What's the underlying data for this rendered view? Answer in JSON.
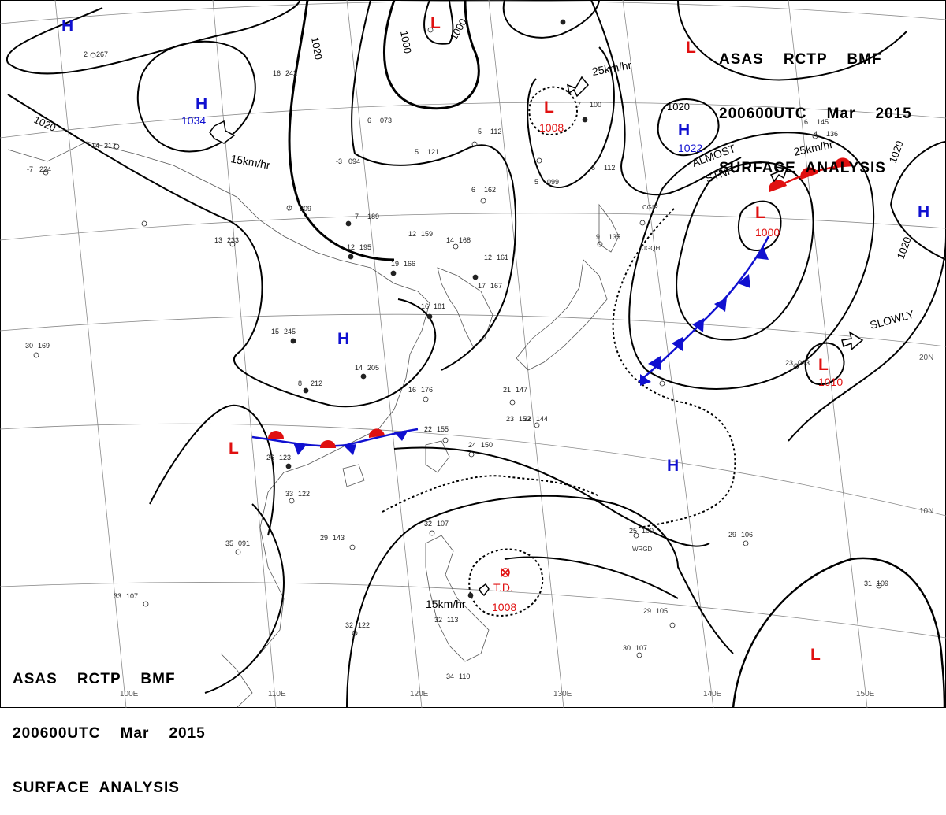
{
  "header_top_right": {
    "line1": "ASAS    RCTP    BMF",
    "line2": "200600UTC    Mar    2015",
    "line3": "SURFACE  ANALYSIS"
  },
  "header_bottom_left": {
    "line1": "ASAS    RCTP    BMF",
    "line2": "200600UTC    Mar    2015",
    "line3": "SURFACE  ANALYSIS"
  },
  "isobar_labels": [
    "1020",
    "1020",
    "1000",
    "1000",
    "1020",
    "1020",
    "1020"
  ],
  "longitude_labels": [
    "100E",
    "110E",
    "120E",
    "130E",
    "140E",
    "150E"
  ],
  "latitude_labels": [
    "20N",
    "10N"
  ],
  "pressure_centers": [
    {
      "type": "H",
      "value": "",
      "color": "#1010d0"
    },
    {
      "type": "H",
      "value": "1034",
      "color": "#1010d0"
    },
    {
      "type": "H",
      "value": "",
      "color": "#1010d0"
    },
    {
      "type": "H",
      "value": "1022",
      "color": "#1010d0"
    },
    {
      "type": "H",
      "value": "",
      "color": "#1010d0"
    },
    {
      "type": "H",
      "value": "",
      "color": "#1010d0"
    },
    {
      "type": "L",
      "value": "",
      "color": "#e01010"
    },
    {
      "type": "L",
      "value": "1008",
      "color": "#e01010"
    },
    {
      "type": "L",
      "value": "",
      "color": "#e01010"
    },
    {
      "type": "L",
      "value": "1000",
      "color": "#e01010"
    },
    {
      "type": "L",
      "value": "1010",
      "color": "#e01010"
    },
    {
      "type": "L",
      "value": "",
      "color": "#e01010"
    },
    {
      "type": "L",
      "value": "",
      "color": "#e01010"
    },
    {
      "type": "T.D.",
      "value": "1008",
      "color": "#e01010"
    }
  ],
  "movement_labels": [
    "15km/hr",
    "25km/hr",
    "25km/hr",
    "ALMOST",
    "STNR",
    "SLOWLY",
    "15km/hr"
  ],
  "station_codes": [
    "JGQH",
    "CGIR",
    "WRGD"
  ],
  "station_obs": [
    {
      "t": "2",
      "p": "267"
    },
    {
      "t": "14",
      "p": "217"
    },
    {
      "t": "-7",
      "p": "224"
    },
    {
      "t": "16",
      "p": "242"
    },
    {
      "t": "13",
      "p": "233"
    },
    {
      "t": "7",
      "p": "209"
    },
    {
      "t": "7",
      "p": "189"
    },
    {
      "t": "12",
      "p": "195"
    },
    {
      "t": "19",
      "p": "166"
    },
    {
      "t": "12",
      "p": "159"
    },
    {
      "t": "14",
      "p": "168"
    },
    {
      "t": "12",
      "p": "161"
    },
    {
      "t": "17",
      "p": "167"
    },
    {
      "t": "16",
      "p": "181"
    },
    {
      "t": "15",
      "p": "245"
    },
    {
      "t": "14",
      "p": "205"
    },
    {
      "t": "16",
      "p": "176"
    },
    {
      "t": "8",
      "p": "212"
    },
    {
      "t": "30",
      "p": "169"
    },
    {
      "t": "22",
      "p": "155"
    },
    {
      "t": "24",
      "p": "150"
    },
    {
      "t": "21",
      "p": "147"
    },
    {
      "t": "23",
      "p": "152"
    },
    {
      "t": "22",
      "p": "144"
    },
    {
      "t": "26",
      "p": "123"
    },
    {
      "t": "33",
      "p": "122"
    },
    {
      "t": "29",
      "p": "143"
    },
    {
      "t": "35",
      "p": "091"
    },
    {
      "t": "33",
      "p": "107"
    },
    {
      "t": "32",
      "p": "122"
    },
    {
      "t": "32",
      "p": "107"
    },
    {
      "t": "32",
      "p": "113"
    },
    {
      "t": "29",
      "p": "105"
    },
    {
      "t": "30",
      "p": "107"
    },
    {
      "t": "34",
      "p": "110"
    },
    {
      "t": "25",
      "p": "100"
    },
    {
      "t": "29",
      "p": "106"
    },
    {
      "t": "31",
      "p": "109"
    },
    {
      "t": "23",
      "p": "093"
    },
    {
      "t": "5",
      "p": "112"
    },
    {
      "t": "5",
      "p": "121"
    },
    {
      "t": "6",
      "p": "162"
    },
    {
      "t": "9",
      "p": "135"
    },
    {
      "t": "7",
      "p": "100"
    },
    {
      "t": "6",
      "p": "112"
    },
    {
      "t": "5",
      "p": "099"
    },
    {
      "t": "6",
      "p": "073"
    },
    {
      "t": "6",
      "p": "145"
    },
    {
      "t": "4",
      "p": "136"
    },
    {
      "t": "-3",
      "p": "094"
    }
  ],
  "colors": {
    "isobar": "#000000",
    "high": "#1010d0",
    "low": "#e01010",
    "cold_front": "#1010d0",
    "warm_front": "#e01010",
    "coast": "#555555",
    "grid": "#8a8a8a"
  }
}
